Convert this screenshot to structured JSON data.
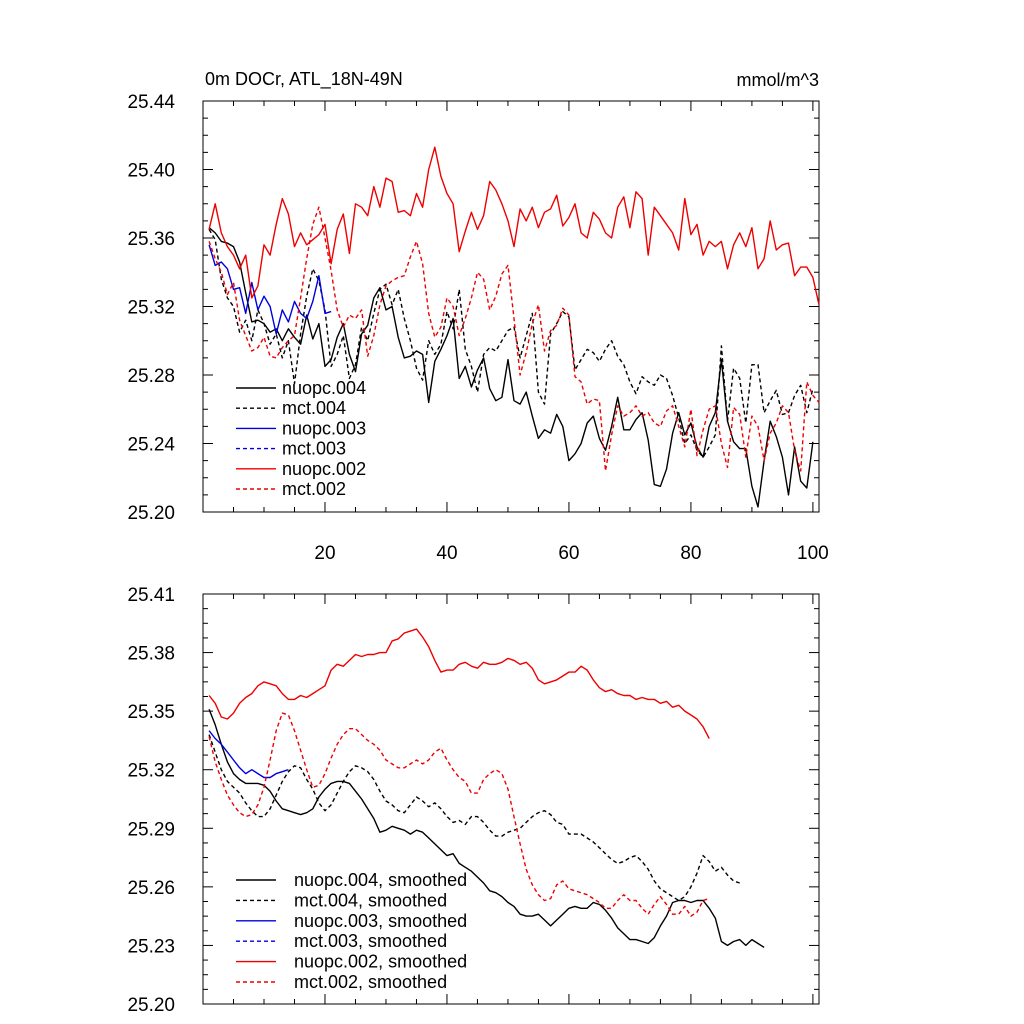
{
  "chart_data": [
    {
      "type": "line",
      "title": "0m DOCr, ATL_18N-49N",
      "units": "mmol/m^3",
      "xlim": [
        0,
        101
      ],
      "xticks": [
        20,
        40,
        60,
        80,
        100
      ],
      "ylim": [
        25.2,
        25.44
      ],
      "yticks": [
        "25.20",
        "25.24",
        "25.28",
        "25.32",
        "25.36",
        "25.40",
        "25.44"
      ],
      "legend_position": "bottom-left",
      "series": [
        {
          "name": "nuopc.004",
          "color": "#000000",
          "dash": "solid",
          "x_start": 1,
          "values": [
            25.366,
            25.363,
            25.358,
            25.357,
            25.355,
            25.346,
            25.328,
            25.311,
            25.312,
            25.31,
            25.305,
            25.307,
            25.3,
            25.307,
            25.302,
            25.298,
            25.315,
            25.301,
            25.31,
            25.285,
            25.289,
            25.302,
            25.31,
            25.292,
            25.282,
            25.304,
            25.309,
            25.325,
            25.331,
            25.318,
            25.32,
            25.302,
            25.29,
            25.291,
            25.294,
            25.292,
            25.264,
            25.288,
            25.295,
            25.303,
            25.313,
            25.278,
            25.285,
            25.273,
            25.283,
            25.29,
            25.272,
            25.265,
            25.267,
            25.289,
            25.265,
            25.263,
            25.27,
            25.256,
            25.243,
            25.248,
            25.246,
            25.257,
            25.25,
            25.23,
            25.234,
            25.24,
            25.252,
            25.256,
            25.243,
            25.236,
            25.25,
            25.267,
            25.248,
            25.248,
            25.254,
            25.258,
            25.242,
            25.216,
            25.215,
            25.225,
            25.246,
            25.258,
            25.245,
            25.252,
            25.238,
            25.232,
            25.25,
            25.258,
            25.289,
            25.253,
            25.241,
            25.237,
            25.237,
            25.215,
            25.203,
            25.23,
            25.253,
            25.244,
            25.232,
            25.21,
            25.238,
            25.218,
            25.214,
            25.241
          ]
        },
        {
          "name": "mct.004",
          "color": "#000000",
          "dash": "dashed",
          "x_start": 1,
          "values": [
            25.365,
            25.359,
            25.336,
            25.325,
            25.32,
            25.305,
            25.312,
            25.3,
            25.318,
            25.31,
            25.298,
            25.304,
            25.29,
            25.3,
            25.275,
            25.304,
            25.326,
            25.342,
            25.335,
            25.318,
            25.285,
            25.292,
            25.303,
            25.278,
            25.286,
            25.308,
            25.3,
            25.316,
            25.33,
            25.333,
            25.321,
            25.33,
            25.313,
            25.3,
            25.284,
            25.277,
            25.3,
            25.292,
            25.298,
            25.317,
            25.307,
            25.33,
            25.295,
            25.285,
            25.27,
            25.292,
            25.296,
            25.294,
            25.3,
            25.306,
            25.308,
            25.29,
            25.303,
            25.316,
            25.27,
            25.263,
            25.304,
            25.31,
            25.317,
            25.314,
            25.283,
            25.289,
            25.295,
            25.293,
            25.288,
            25.295,
            25.3,
            25.291,
            25.286,
            25.276,
            25.269,
            25.279,
            25.276,
            25.274,
            25.28,
            25.278,
            25.268,
            25.255,
            25.24,
            25.245,
            25.236,
            25.232,
            25.238,
            25.245,
            25.297,
            25.253,
            25.284,
            25.278,
            25.252,
            25.286,
            25.286,
            25.258,
            25.265,
            25.271,
            25.257,
            25.258,
            25.268,
            25.274,
            25.258,
            25.272
          ]
        },
        {
          "name": "nuopc.003",
          "color": "#0000dd",
          "dash": "solid",
          "x_start": 1,
          "values": [
            25.356,
            25.344,
            25.346,
            25.342,
            25.33,
            25.331,
            25.316,
            25.334,
            25.318,
            25.326,
            25.32,
            25.304,
            25.318,
            25.311,
            25.323,
            25.316,
            25.313,
            25.323,
            25.338,
            25.316,
            25.317
          ]
        },
        {
          "name": "mct.003",
          "color": "#0000dd",
          "dash": "dashed",
          "x_start": 1,
          "values": []
        },
        {
          "name": "nuopc.002",
          "color": "#ee0000",
          "dash": "solid",
          "x_start": 1,
          "values": [
            25.365,
            25.38,
            25.363,
            25.355,
            25.35,
            25.342,
            25.35,
            25.325,
            25.332,
            25.356,
            25.35,
            25.368,
            25.383,
            25.374,
            25.355,
            25.363,
            25.356,
            25.359,
            25.362,
            25.368,
            25.345,
            25.365,
            25.374,
            25.351,
            25.38,
            25.378,
            25.373,
            25.39,
            25.378,
            25.395,
            25.393,
            25.375,
            25.376,
            25.373,
            25.386,
            25.378,
            25.4,
            25.413,
            25.396,
            25.386,
            25.38,
            25.352,
            25.364,
            25.375,
            25.365,
            25.373,
            25.393,
            25.388,
            25.38,
            25.37,
            25.355,
            25.377,
            25.37,
            25.378,
            25.366,
            25.375,
            25.377,
            25.385,
            25.367,
            25.372,
            25.38,
            25.363,
            25.36,
            25.375,
            25.371,
            25.363,
            25.36,
            25.378,
            25.384,
            25.366,
            25.387,
            25.383,
            25.35,
            25.378,
            25.373,
            25.368,
            25.363,
            25.353,
            25.383,
            25.362,
            25.368,
            25.35,
            25.358,
            25.355,
            25.358,
            25.342,
            25.356,
            25.363,
            25.355,
            25.366,
            25.342,
            25.348,
            25.37,
            25.353,
            25.356,
            25.357,
            25.338,
            25.343,
            25.343,
            25.337,
            25.321
          ]
        },
        {
          "name": "mct.002",
          "color": "#ee0000",
          "dash": "dashed",
          "x_start": 1,
          "values": [
            25.358,
            25.348,
            25.34,
            25.327,
            25.334,
            25.312,
            25.303,
            25.294,
            25.296,
            25.302,
            25.291,
            25.29,
            25.296,
            25.3,
            25.303,
            25.325,
            25.348,
            25.368,
            25.378,
            25.36,
            25.341,
            25.318,
            25.308,
            25.315,
            25.313,
            25.318,
            25.291,
            25.303,
            25.321,
            25.332,
            25.335,
            25.337,
            25.338,
            25.349,
            25.358,
            25.345,
            25.316,
            25.302,
            25.308,
            25.325,
            25.32,
            25.303,
            25.313,
            25.325,
            25.34,
            25.336,
            25.318,
            25.326,
            25.339,
            25.344,
            25.313,
            25.28,
            25.293,
            25.31,
            25.321,
            25.294,
            25.306,
            25.309,
            25.319,
            25.315,
            25.279,
            25.276,
            25.263,
            25.266,
            25.265,
            25.224,
            25.245,
            25.262,
            25.256,
            25.258,
            25.262,
            25.256,
            25.258,
            25.252,
            25.25,
            25.259,
            25.262,
            25.25,
            25.238,
            25.26,
            25.233,
            25.248,
            25.26,
            25.262,
            25.24,
            25.226,
            25.261,
            25.257,
            25.232,
            25.256,
            25.25,
            25.23,
            25.246,
            25.252,
            25.262,
            25.258,
            25.236,
            25.224,
            25.276,
            25.268,
            25.264
          ]
        }
      ]
    },
    {
      "type": "line",
      "title": "",
      "xlim": [
        0,
        101
      ],
      "ylim": [
        25.2,
        25.41
      ],
      "yticks": [
        "25.20",
        "25.23",
        "25.26",
        "25.29",
        "25.32",
        "25.35",
        "25.38",
        "25.41"
      ],
      "legend_position": "bottom-left",
      "series": [
        {
          "name": "nuopc.004, smoothed",
          "color": "#000000",
          "dash": "solid",
          "x_start": 1,
          "values": [
            25.351,
            25.343,
            25.333,
            25.324,
            25.318,
            25.315,
            25.313,
            25.313,
            25.313,
            25.312,
            25.309,
            25.304,
            25.3,
            25.299,
            25.298,
            25.297,
            25.298,
            25.3,
            25.306,
            25.31,
            25.313,
            25.314,
            25.314,
            25.313,
            25.309,
            25.305,
            25.3,
            25.295,
            25.288,
            25.289,
            25.291,
            25.29,
            25.289,
            25.287,
            25.289,
            25.288,
            25.285,
            25.282,
            25.279,
            25.276,
            25.277,
            25.272,
            25.27,
            25.268,
            25.265,
            25.262,
            25.258,
            25.257,
            25.255,
            25.252,
            25.25,
            25.246,
            25.245,
            25.245,
            25.246,
            25.243,
            25.24,
            25.243,
            25.246,
            25.249,
            25.25,
            25.249,
            25.249,
            25.252,
            25.251,
            25.248,
            25.244,
            25.239,
            25.236,
            25.233,
            25.233,
            25.232,
            25.231,
            25.234,
            25.24,
            25.245,
            25.252,
            25.253,
            25.253,
            25.252,
            25.253,
            25.253,
            25.249,
            25.244,
            25.232,
            25.23,
            25.232,
            25.233,
            25.23,
            25.233,
            25.231,
            25.229
          ]
        },
        {
          "name": "mct.004, smoothed",
          "color": "#000000",
          "dash": "dashed",
          "x_start": 1,
          "values": [
            25.338,
            25.329,
            25.32,
            25.314,
            25.311,
            25.308,
            25.303,
            25.299,
            25.296,
            25.296,
            25.3,
            25.307,
            25.314,
            25.319,
            25.322,
            25.321,
            25.315,
            25.31,
            25.303,
            25.299,
            25.302,
            25.308,
            25.314,
            25.319,
            25.322,
            25.321,
            25.319,
            25.315,
            25.309,
            25.304,
            25.302,
            25.299,
            25.298,
            25.302,
            25.306,
            25.304,
            25.301,
            25.303,
            25.3,
            25.296,
            25.293,
            25.294,
            25.292,
            25.296,
            25.296,
            25.293,
            25.289,
            25.286,
            25.286,
            25.288,
            25.289,
            25.29,
            25.293,
            25.296,
            25.298,
            25.299,
            25.297,
            25.293,
            25.292,
            25.287,
            25.287,
            25.287,
            25.285,
            25.283,
            25.28,
            25.277,
            25.274,
            25.272,
            25.273,
            25.275,
            25.276,
            25.273,
            25.269,
            25.263,
            25.259,
            25.257,
            25.255,
            25.253,
            25.255,
            25.26,
            25.267,
            25.276,
            25.273,
            25.268,
            25.27,
            25.266,
            25.263,
            25.262
          ]
        },
        {
          "name": "nuopc.003, smoothed",
          "color": "#0000dd",
          "dash": "solid",
          "x_start": 1,
          "values": [
            25.34,
            25.336,
            25.333,
            25.329,
            25.325,
            25.321,
            25.318,
            25.32,
            25.318,
            25.316,
            25.316,
            25.318,
            25.319,
            25.32
          ]
        },
        {
          "name": "mct.003, smoothed",
          "color": "#0000dd",
          "dash": "dashed",
          "x_start": 1,
          "values": []
        },
        {
          "name": "nuopc.002, smoothed",
          "color": "#ee0000",
          "dash": "solid",
          "x_start": 1,
          "values": [
            25.358,
            25.354,
            25.347,
            25.346,
            25.349,
            25.354,
            25.357,
            25.359,
            25.363,
            25.365,
            25.364,
            25.363,
            25.359,
            25.356,
            25.356,
            25.358,
            25.357,
            25.359,
            25.361,
            25.363,
            25.371,
            25.374,
            25.373,
            25.376,
            25.379,
            25.378,
            25.379,
            25.379,
            25.38,
            25.38,
            25.386,
            25.387,
            25.39,
            25.391,
            25.392,
            25.388,
            25.383,
            25.376,
            25.37,
            25.371,
            25.371,
            25.374,
            25.375,
            25.373,
            25.372,
            25.375,
            25.374,
            25.374,
            25.375,
            25.377,
            25.376,
            25.374,
            25.375,
            25.372,
            25.366,
            25.364,
            25.365,
            25.366,
            25.368,
            25.37,
            25.37,
            25.373,
            25.371,
            25.366,
            25.362,
            25.36,
            25.361,
            25.359,
            25.358,
            25.358,
            25.356,
            25.357,
            25.356,
            25.356,
            25.354,
            25.355,
            25.352,
            25.353,
            25.35,
            25.348,
            25.346,
            25.342,
            25.336
          ]
        },
        {
          "name": "mct.002, smoothed",
          "color": "#ee0000",
          "dash": "dashed",
          "x_start": 1,
          "values": [
            25.337,
            25.324,
            25.315,
            25.307,
            25.302,
            25.298,
            25.296,
            25.297,
            25.302,
            25.311,
            25.325,
            25.34,
            25.349,
            25.348,
            25.34,
            25.33,
            25.32,
            25.311,
            25.312,
            25.318,
            25.326,
            25.333,
            25.338,
            25.341,
            25.341,
            25.338,
            25.335,
            25.333,
            25.33,
            25.325,
            25.323,
            25.321,
            25.321,
            25.323,
            25.325,
            25.323,
            25.325,
            25.329,
            25.331,
            25.325,
            25.32,
            25.316,
            25.314,
            25.308,
            25.308,
            25.315,
            25.318,
            25.32,
            25.318,
            25.31,
            25.296,
            25.282,
            25.269,
            25.261,
            25.256,
            25.253,
            25.254,
            25.261,
            25.263,
            25.259,
            25.258,
            25.257,
            25.256,
            25.254,
            25.252,
            25.249,
            25.249,
            25.253,
            25.256,
            25.253,
            25.253,
            25.249,
            25.246,
            25.251,
            25.255,
            25.251,
            25.246,
            25.246,
            25.25,
            25.245,
            25.247,
            25.253,
            25.254
          ]
        }
      ]
    }
  ]
}
